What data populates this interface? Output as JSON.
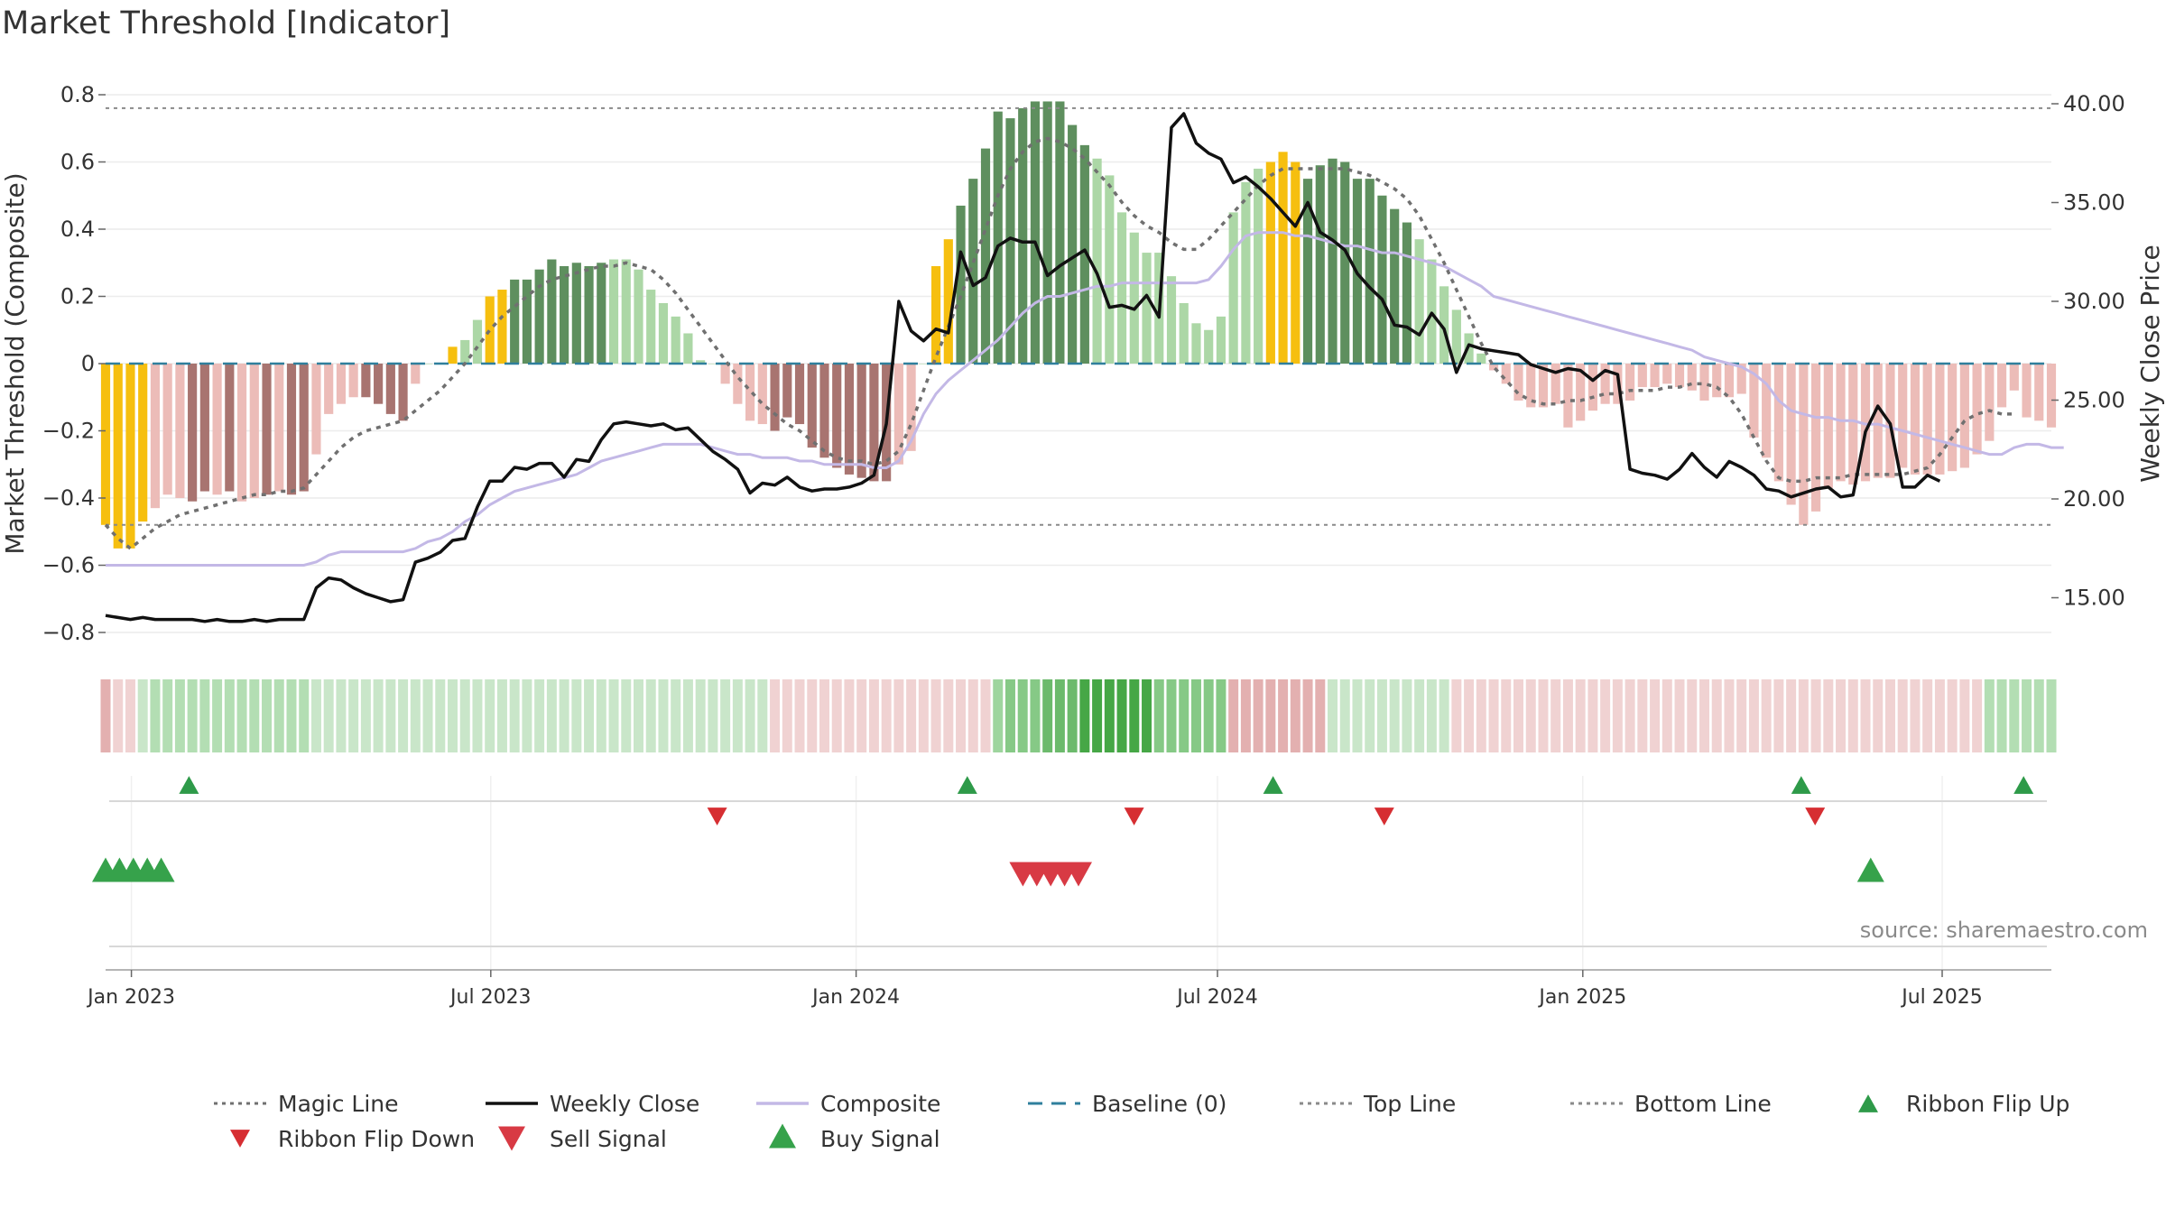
{
  "page": {
    "title": "Market Threshold [Indicator]",
    "source": "source: sharemaestro.com"
  },
  "colors": {
    "magic": "#707070",
    "close": "#111111",
    "composite": "#c3b8e6",
    "baseline": "#2f7f9c",
    "topbottom": "#8a8a8a",
    "gold": "#f6bf0f",
    "dark_green": "#5e8f5e",
    "light_green": "#acd7a6",
    "dark_red": "#a87470",
    "light_red": "#ecbcb8",
    "up": "#2e9a49",
    "down": "#d62e32",
    "sell": "#d83a44",
    "buy": "#36a24b"
  },
  "chart_data": {
    "type": "bar",
    "title": "Market Threshold [Indicator]",
    "ylabel_left": "Market Threshold (Composite)",
    "ylabel_right": "Weekly Close Price",
    "ylim_left": [
      -0.85,
      0.83
    ],
    "ylim_right": [
      12.0,
      42.0
    ],
    "yticks_left": [
      "0.8",
      "0.6",
      "0.4",
      "0.2",
      "0",
      "−0.2",
      "−0.4",
      "−0.6",
      "−0.8"
    ],
    "yticks_right": [
      "40.00",
      "35.00",
      "30.00",
      "25.00",
      "20.00",
      "15.00"
    ],
    "x_start": "2022-12-19",
    "x_end": "2025-08-25",
    "xticks": [
      "Jan 2023",
      "Jul 2023",
      "Jan 2024",
      "Jul 2024",
      "Jan 2025",
      "Jul 2025"
    ],
    "top_line": 0.76,
    "bottom_line": -0.48,
    "bars": [
      -0.48,
      -0.55,
      -0.55,
      -0.47,
      -0.43,
      -0.39,
      -0.4,
      -0.41,
      -0.38,
      -0.39,
      -0.38,
      -0.41,
      -0.4,
      -0.39,
      -0.38,
      -0.39,
      -0.38,
      -0.27,
      -0.15,
      -0.12,
      -0.1,
      -0.1,
      -0.12,
      -0.15,
      -0.17,
      -0.06,
      0.0,
      0.0,
      0.05,
      0.07,
      0.13,
      0.2,
      0.22,
      0.25,
      0.25,
      0.28,
      0.31,
      0.29,
      0.3,
      0.29,
      0.3,
      0.31,
      0.31,
      0.28,
      0.22,
      0.18,
      0.14,
      0.09,
      0.01,
      0.0,
      -0.06,
      -0.12,
      -0.17,
      -0.18,
      -0.2,
      -0.16,
      -0.18,
      -0.25,
      -0.28,
      -0.31,
      -0.33,
      -0.34,
      -0.35,
      -0.35,
      -0.3,
      -0.26,
      0.0,
      0.29,
      0.37,
      0.47,
      0.55,
      0.64,
      0.75,
      0.73,
      0.76,
      0.78,
      0.78,
      0.78,
      0.71,
      0.65,
      0.61,
      0.56,
      0.45,
      0.39,
      0.33,
      0.33,
      0.26,
      0.18,
      0.12,
      0.1,
      0.14,
      0.45,
      0.54,
      0.58,
      0.6,
      0.63,
      0.6,
      0.55,
      0.59,
      0.61,
      0.6,
      0.55,
      0.55,
      0.5,
      0.46,
      0.42,
      0.37,
      0.31,
      0.23,
      0.16,
      0.09,
      0.03,
      -0.02,
      -0.06,
      -0.11,
      -0.13,
      -0.13,
      -0.12,
      -0.19,
      -0.17,
      -0.14,
      -0.12,
      -0.12,
      -0.11,
      -0.07,
      -0.07,
      -0.06,
      -0.07,
      -0.08,
      -0.11,
      -0.1,
      -0.1,
      -0.09,
      -0.22,
      -0.28,
      -0.35,
      -0.42,
      -0.48,
      -0.44,
      -0.37,
      -0.35,
      -0.36,
      -0.35,
      -0.34,
      -0.34,
      -0.31,
      -0.33,
      -0.33,
      -0.33,
      -0.32,
      -0.31,
      -0.27,
      -0.23,
      -0.13,
      -0.08,
      -0.16,
      -0.17,
      -0.19
    ],
    "bar_color_codes": "GGGGLLLDDLDLLDLDDLLLLDDDDLLLGLLGGDDDDDDDDLLLLLLLLLLLRLDDDDDDDDDDLLLGGDDDDDDDDDDDLLLLLLLLLLLLLLGGGDDDDDDDDDLLLLLLLLLLLLLLLLLLLLLLLLLLLLLLLLLLLLLLLLLLLLLLLLLLLLLLDDLLLLLLLLLLLLLLLDDDDDDD",
    "magic_line": [
      -0.48,
      -0.52,
      -0.55,
      -0.52,
      -0.49,
      -0.47,
      -0.45,
      -0.44,
      -0.43,
      -0.42,
      -0.41,
      -0.4,
      -0.39,
      -0.39,
      -0.38,
      -0.38,
      -0.37,
      -0.33,
      -0.29,
      -0.25,
      -0.22,
      -0.2,
      -0.19,
      -0.18,
      -0.17,
      -0.14,
      -0.11,
      -0.08,
      -0.04,
      0.0,
      0.05,
      0.1,
      0.14,
      0.17,
      0.2,
      0.23,
      0.25,
      0.26,
      0.27,
      0.28,
      0.29,
      0.29,
      0.3,
      0.29,
      0.28,
      0.25,
      0.21,
      0.16,
      0.11,
      0.06,
      0.01,
      -0.04,
      -0.08,
      -0.12,
      -0.15,
      -0.18,
      -0.2,
      -0.23,
      -0.26,
      -0.28,
      -0.29,
      -0.29,
      -0.3,
      -0.29,
      -0.26,
      -0.18,
      -0.08,
      0.02,
      0.11,
      0.2,
      0.3,
      0.4,
      0.5,
      0.58,
      0.63,
      0.66,
      0.67,
      0.66,
      0.64,
      0.61,
      0.57,
      0.53,
      0.48,
      0.44,
      0.41,
      0.39,
      0.36,
      0.34,
      0.34,
      0.37,
      0.41,
      0.45,
      0.49,
      0.53,
      0.56,
      0.58,
      0.58,
      0.58,
      0.58,
      0.58,
      0.58,
      0.57,
      0.56,
      0.54,
      0.52,
      0.49,
      0.44,
      0.37,
      0.3,
      0.22,
      0.14,
      0.06,
      -0.01,
      -0.05,
      -0.09,
      -0.11,
      -0.12,
      -0.12,
      -0.11,
      -0.11,
      -0.1,
      -0.09,
      -0.09,
      -0.08,
      -0.08,
      -0.08,
      -0.07,
      -0.07,
      -0.06,
      -0.06,
      -0.07,
      -0.1,
      -0.15,
      -0.22,
      -0.29,
      -0.34,
      -0.35,
      -0.35,
      -0.34,
      -0.34,
      -0.34,
      -0.33,
      -0.33,
      -0.33,
      -0.33,
      -0.33,
      -0.32,
      -0.31,
      -0.27,
      -0.22,
      -0.17,
      -0.15,
      -0.14,
      -0.15,
      -0.15
    ],
    "composite": [
      -0.6,
      -0.6,
      -0.6,
      -0.6,
      -0.6,
      -0.6,
      -0.6,
      -0.6,
      -0.6,
      -0.6,
      -0.6,
      -0.6,
      -0.6,
      -0.6,
      -0.6,
      -0.6,
      -0.6,
      -0.59,
      -0.57,
      -0.56,
      -0.56,
      -0.56,
      -0.56,
      -0.56,
      -0.56,
      -0.55,
      -0.53,
      -0.52,
      -0.5,
      -0.47,
      -0.45,
      -0.42,
      -0.4,
      -0.38,
      -0.37,
      -0.36,
      -0.35,
      -0.34,
      -0.33,
      -0.31,
      -0.29,
      -0.28,
      -0.27,
      -0.26,
      -0.25,
      -0.24,
      -0.24,
      -0.24,
      -0.24,
      -0.25,
      -0.26,
      -0.27,
      -0.27,
      -0.28,
      -0.28,
      -0.28,
      -0.29,
      -0.29,
      -0.3,
      -0.3,
      -0.3,
      -0.3,
      -0.31,
      -0.31,
      -0.29,
      -0.23,
      -0.15,
      -0.09,
      -0.05,
      -0.02,
      0.01,
      0.04,
      0.07,
      0.11,
      0.15,
      0.18,
      0.2,
      0.2,
      0.21,
      0.22,
      0.23,
      0.23,
      0.24,
      0.24,
      0.24,
      0.24,
      0.24,
      0.24,
      0.24,
      0.25,
      0.29,
      0.34,
      0.38,
      0.39,
      0.39,
      0.39,
      0.38,
      0.38,
      0.37,
      0.36,
      0.35,
      0.35,
      0.34,
      0.33,
      0.33,
      0.32,
      0.31,
      0.3,
      0.29,
      0.27,
      0.25,
      0.23,
      0.2,
      0.19,
      0.18,
      0.17,
      0.16,
      0.15,
      0.14,
      0.13,
      0.12,
      0.11,
      0.1,
      0.09,
      0.08,
      0.07,
      0.06,
      0.05,
      0.04,
      0.02,
      0.01,
      0.0,
      -0.01,
      -0.03,
      -0.06,
      -0.11,
      -0.14,
      -0.15,
      -0.16,
      -0.16,
      -0.17,
      -0.17,
      -0.18,
      -0.18,
      -0.19,
      -0.2,
      -0.21,
      -0.22,
      -0.23,
      -0.24,
      -0.25,
      -0.26,
      -0.27,
      -0.27,
      -0.25,
      -0.24,
      -0.24,
      -0.25,
      -0.25
    ],
    "weekly_close": [
      14.1,
      14.0,
      13.9,
      14.0,
      13.9,
      13.9,
      13.9,
      13.9,
      13.8,
      13.9,
      13.8,
      13.8,
      13.9,
      13.8,
      13.9,
      13.9,
      13.9,
      15.5,
      16.0,
      15.9,
      15.5,
      15.2,
      15.0,
      14.8,
      14.9,
      16.8,
      17.0,
      17.3,
      17.9,
      18.0,
      19.6,
      20.9,
      20.9,
      21.6,
      21.5,
      21.8,
      21.8,
      21.1,
      22.0,
      21.9,
      23.0,
      23.8,
      23.9,
      23.8,
      23.7,
      23.8,
      23.5,
      23.6,
      23.0,
      22.4,
      22.0,
      21.5,
      20.3,
      20.8,
      20.7,
      21.1,
      20.6,
      20.4,
      20.5,
      20.5,
      20.6,
      20.8,
      21.2,
      23.8,
      30.0,
      28.5,
      28.0,
      28.6,
      28.4,
      32.5,
      30.8,
      31.2,
      32.8,
      33.2,
      33.0,
      33.0,
      31.3,
      31.8,
      32.2,
      32.6,
      31.4,
      29.7,
      29.8,
      29.6,
      30.3,
      29.2,
      38.8,
      39.5,
      38.0,
      37.5,
      37.2,
      36.0,
      36.3,
      35.8,
      35.2,
      34.5,
      33.8,
      35.0,
      33.5,
      33.1,
      32.6,
      31.4,
      30.7,
      30.1,
      28.8,
      28.7,
      28.3,
      29.4,
      28.6,
      26.4,
      27.8,
      27.6,
      27.5,
      27.4,
      27.3,
      26.8,
      26.6,
      26.4,
      26.6,
      26.5,
      26.0,
      26.5,
      26.3,
      21.5,
      21.3,
      21.2,
      21.0,
      21.5,
      22.3,
      21.6,
      21.1,
      21.9,
      21.6,
      21.2,
      20.5,
      20.4,
      20.1,
      20.3,
      20.5,
      20.6,
      20.1,
      20.2,
      23.4,
      24.7,
      23.8,
      20.6,
      20.6,
      21.2,
      20.9
    ]
  },
  "ribbon": {
    "colors": [
      "#d48e8e",
      "#e3b0b0",
      "#f0d2d2",
      "#c9e6c9",
      "#b3deb3",
      "#9ed59e",
      "#86c986",
      "#6cba6c",
      "#46a746"
    ],
    "codes": "1223444444444444433333333333333333333333333333333333332222222222222222225666777888888666666111111113333333333222222222222222222222222222222222222222222244444444444222222222222222222222333333333"
  },
  "markers": {
    "ribbon_up": [
      "2023-01-30",
      "2024-02-26",
      "2024-07-29",
      "2025-04-21",
      "2025-08-11"
    ],
    "ribbon_down": [
      "2023-10-23",
      "2024-05-20",
      "2024-09-23",
      "2025-04-28"
    ],
    "buy": [
      "2022-12-19",
      "2022-12-26",
      "2023-01-02",
      "2023-01-09",
      "2023-01-16",
      "2025-05-26"
    ],
    "sell": [
      "2024-03-25",
      "2024-04-01",
      "2024-04-08",
      "2024-04-15",
      "2024-04-22"
    ]
  },
  "legend": [
    {
      "label": "Magic Line",
      "kind": "dotted",
      "color": "#707070"
    },
    {
      "label": "Weekly Close",
      "kind": "line",
      "color": "#111111"
    },
    {
      "label": "Composite",
      "kind": "line",
      "color": "#c3b8e6"
    },
    {
      "label": "Baseline (0)",
      "kind": "dashed",
      "color": "#2f7f9c"
    },
    {
      "label": "Top Line",
      "kind": "dotted",
      "color": "#8a8a8a"
    },
    {
      "label": "Bottom Line",
      "kind": "dotted",
      "color": "#8a8a8a"
    },
    {
      "label": "Ribbon Flip Up",
      "kind": "tri-up",
      "color": "#2e9a49"
    },
    {
      "label": "Ribbon Flip Down",
      "kind": "tri-down",
      "color": "#d62e32"
    },
    {
      "label": "Sell Signal",
      "kind": "tri-down-big",
      "color": "#d83a44"
    },
    {
      "label": "Buy Signal",
      "kind": "tri-up-big",
      "color": "#36a24b"
    }
  ]
}
